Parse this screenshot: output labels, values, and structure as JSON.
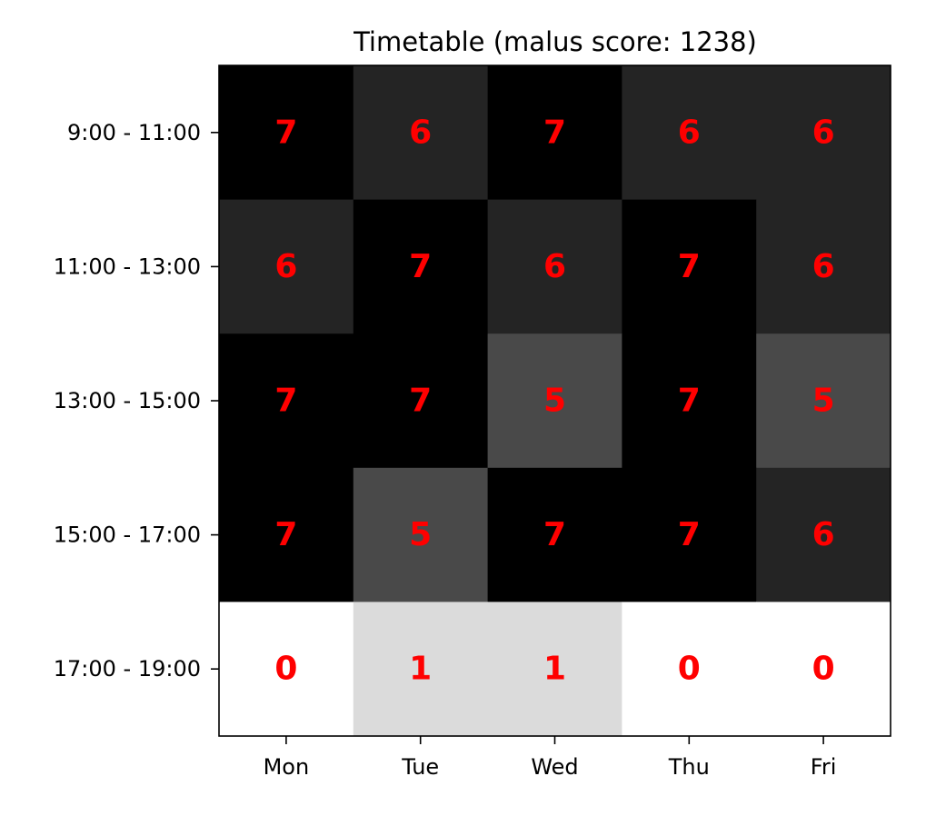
{
  "chart_data": {
    "type": "heatmap",
    "title": "Timetable (malus score: 1238)",
    "xlabel": "",
    "ylabel": "",
    "x_categories": [
      "Mon",
      "Tue",
      "Wed",
      "Thu",
      "Fri"
    ],
    "y_categories": [
      "9:00 - 11:00",
      "11:00 - 13:00",
      "13:00 - 15:00",
      "15:00 - 17:00",
      "17:00 - 19:00"
    ],
    "values": [
      [
        7,
        6,
        7,
        6,
        6
      ],
      [
        6,
        7,
        6,
        7,
        6
      ],
      [
        7,
        7,
        5,
        7,
        5
      ],
      [
        7,
        5,
        7,
        7,
        6
      ],
      [
        0,
        1,
        1,
        0,
        0
      ]
    ],
    "colormap": "gray_r",
    "value_range": [
      0,
      7
    ],
    "annotation_color": "#ff0000",
    "grid": false,
    "legend": "none"
  }
}
